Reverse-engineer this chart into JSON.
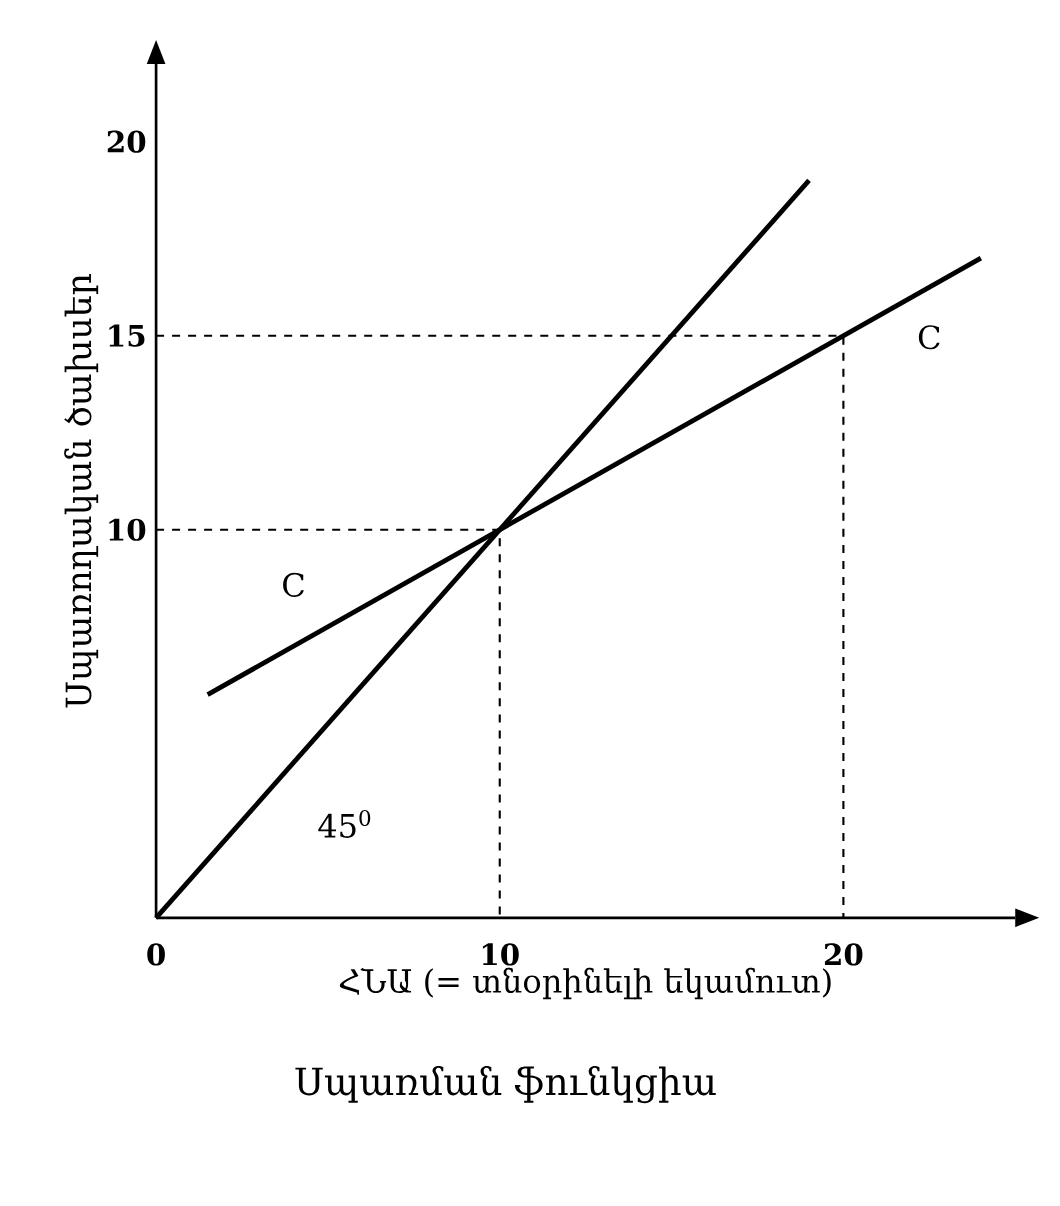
{
  "chart_data": {
    "type": "line",
    "title": "Սպառման ֆունկցիա",
    "xlabel": "ՀՆԱ (= տնօրինելի եկամուտ)",
    "ylabel": "Սպառողական ծախսեր",
    "xlim": [
      0,
      25
    ],
    "ylim": [
      0,
      22
    ],
    "xticks": [
      0,
      10,
      20
    ],
    "yticks": [
      10,
      15,
      20
    ],
    "series": [
      {
        "color": "#000000",
        "line_style": "solid",
        "x": [
          0,
          19
        ],
        "values": [
          0,
          19
        ]
      },
      {
        "color": "#000000",
        "line_style": "solid",
        "x": [
          1.5,
          24
        ],
        "values": [
          5.75,
          17
        ]
      },
      {
        "color": "#000000",
        "line_style": "dashed",
        "x": [
          0,
          10,
          10
        ],
        "values": [
          10,
          10,
          0
        ]
      },
      {
        "color": "#000000",
        "line_style": "dashed",
        "x": [
          0,
          20,
          20
        ],
        "values": [
          15,
          15,
          0
        ]
      }
    ],
    "annotations": [
      "C",
      "C",
      "45$^{0}$"
    ]
  }
}
